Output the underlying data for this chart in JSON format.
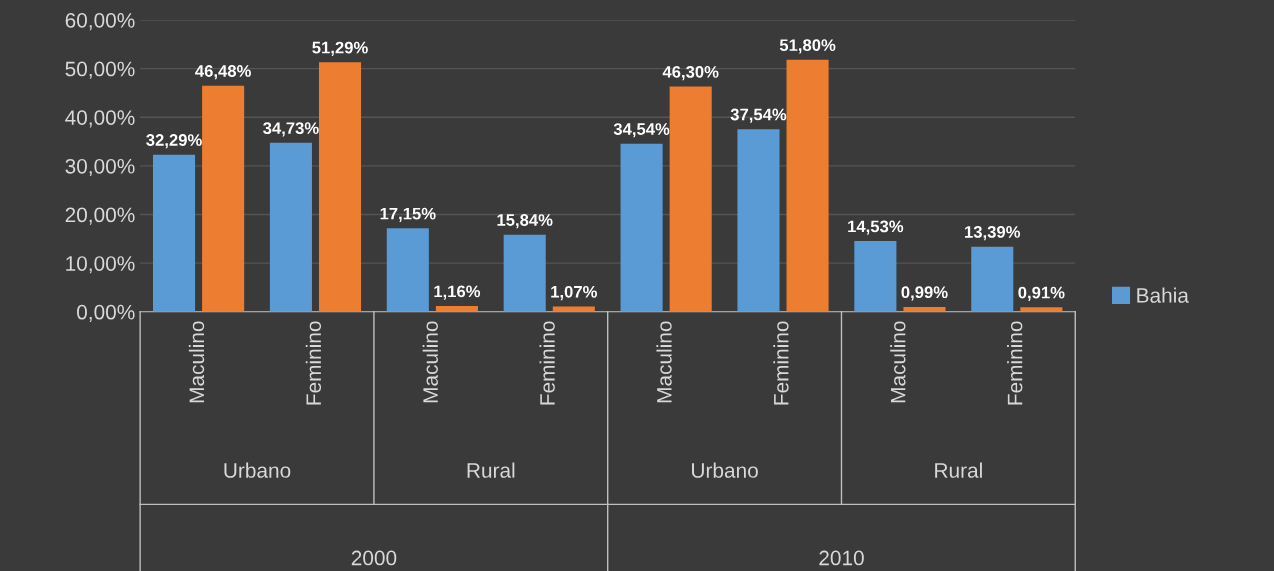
{
  "chart_data": {
    "type": "bar",
    "categories": [
      "Maculino",
      "Feminino",
      "Maculino",
      "Feminino",
      "Maculino",
      "Feminino",
      "Maculino",
      "Feminino"
    ],
    "series": [
      {
        "name": "Bahia",
        "color": "#5b9bd5",
        "values": [
          32.29,
          34.73,
          17.15,
          15.84,
          34.54,
          37.54,
          14.53,
          13.39
        ],
        "value_labels": [
          "32,29%",
          "34,73%",
          "17,15%",
          "15,84%",
          "34,54%",
          "37,54%",
          "14,53%",
          "13,39%"
        ]
      },
      {
        "color": "#ed7d31",
        "values": [
          46.48,
          51.29,
          1.16,
          1.07,
          46.3,
          51.8,
          0.99,
          0.91
        ],
        "value_labels": [
          "46,48%",
          "51,29%",
          "1,16%",
          "1,07%",
          "46,30%",
          "51,80%",
          "0,99%",
          "0,91%"
        ]
      }
    ],
    "annotations": [
      "Urbano",
      "Rural",
      "Urbano",
      "Rural",
      "2000",
      "2010"
    ],
    "ylim": [
      0,
      60
    ],
    "yticks": [
      {
        "value": 0,
        "label": "0,00%"
      },
      {
        "value": 10,
        "label": "10,00%"
      },
      {
        "value": 20,
        "label": "20,00%"
      },
      {
        "value": 30,
        "label": "30,00%"
      },
      {
        "value": 40,
        "label": "40,00%"
      },
      {
        "value": 50,
        "label": "50,00%"
      },
      {
        "value": 60,
        "label": "60,00%"
      }
    ],
    "grid": "y",
    "legend": "right"
  }
}
